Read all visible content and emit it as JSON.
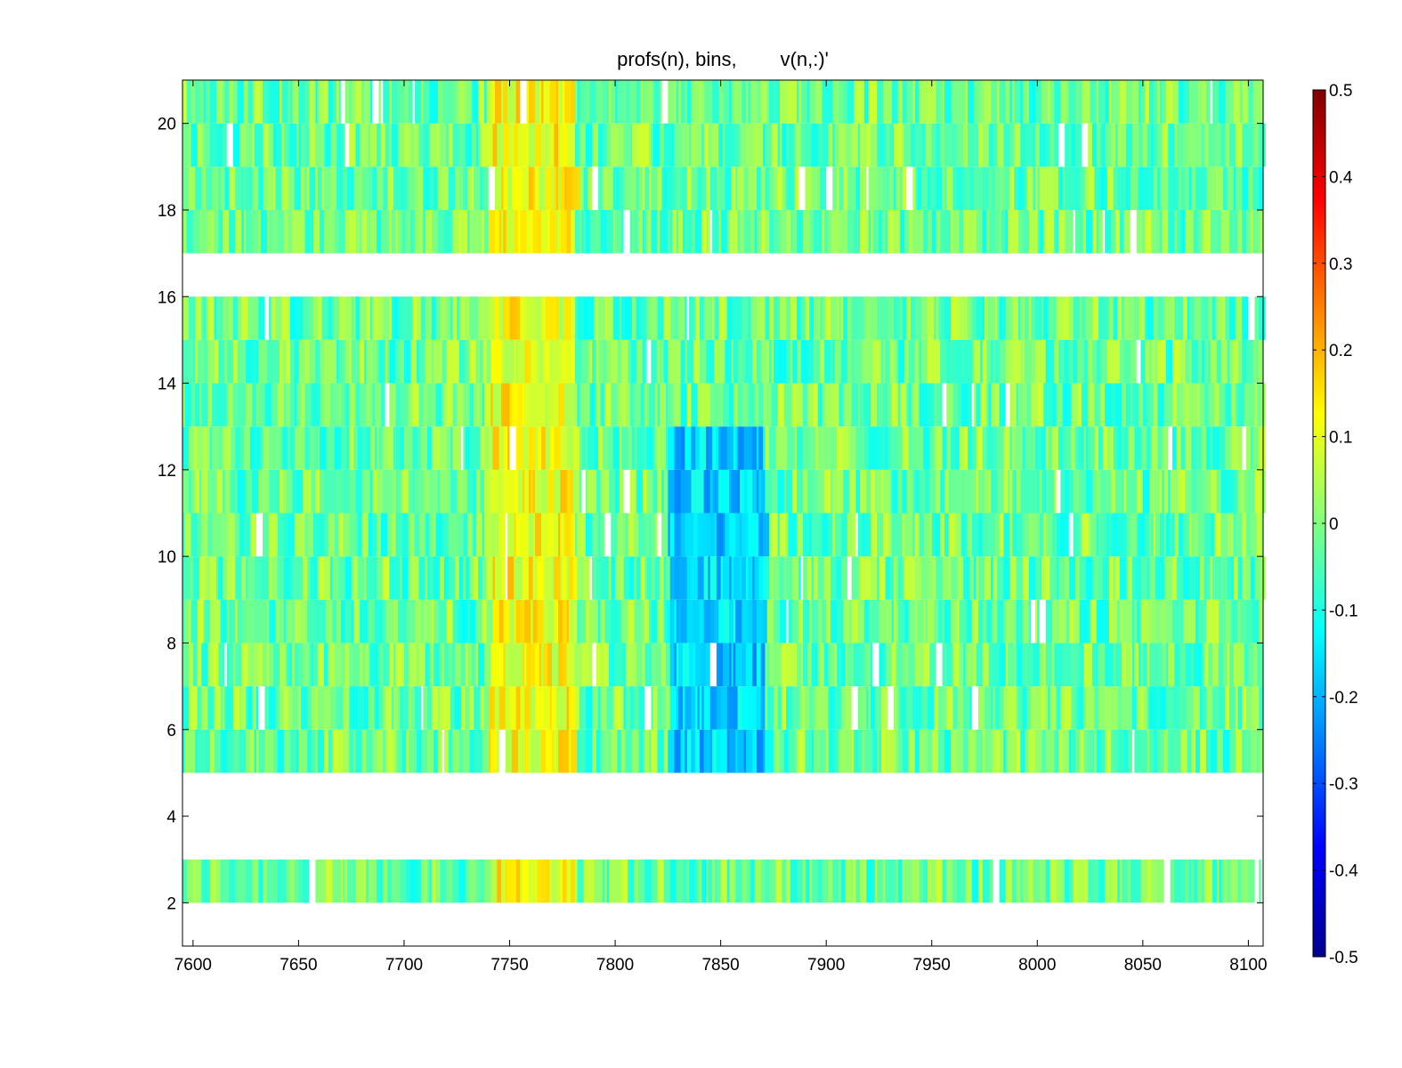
{
  "chart_data": {
    "type": "heatmap",
    "title": "profs(n), bins,        v(n,:)'",
    "xlabel": "",
    "ylabel": "",
    "xlim": [
      7595,
      8107
    ],
    "ylim": [
      1,
      21
    ],
    "xticks": [
      7600,
      7650,
      7700,
      7750,
      7800,
      7850,
      7900,
      7950,
      8000,
      8050,
      8100
    ],
    "xtick_labels": [
      "7600",
      "7650",
      "7700",
      "7750",
      "7800",
      "7850",
      "7900",
      "7950",
      "8000",
      "8050",
      "8100"
    ],
    "yticks": [
      2,
      4,
      6,
      8,
      10,
      12,
      14,
      16,
      18,
      20
    ],
    "ytick_labels": [
      "2",
      "4",
      "6",
      "8",
      "10",
      "12",
      "14",
      "16",
      "18",
      "20"
    ],
    "grid": false,
    "colormap": "jet",
    "clim": [
      -0.5,
      0.5
    ],
    "colorbar": {
      "ticks": [
        0.5,
        0.4,
        0.3,
        0.2,
        0.1,
        0,
        -0.1,
        -0.2,
        -0.3,
        -0.4,
        -0.5
      ],
      "tick_labels": [
        "0.5",
        "0.4",
        "0.3",
        "0.2",
        "0.1",
        "0",
        "-0.1",
        "-0.2",
        "-0.3",
        "-0.4",
        "-0.5"
      ],
      "position": "right"
    },
    "rows_with_data": [
      2,
      5,
      6,
      7,
      8,
      9,
      10,
      11,
      12,
      13,
      14,
      15,
      17,
      18,
      19,
      20
    ],
    "empty_rows": [
      1,
      3,
      4,
      16
    ],
    "column_step": 1,
    "approximate_features": [
      {
        "x_range": [
          7740,
          7780
        ],
        "rows": [
          2,
          20
        ],
        "mean_value": 0.12,
        "description_label": "warm band"
      },
      {
        "x_range": [
          7825,
          7870
        ],
        "rows": [
          5,
          12
        ],
        "mean_value": -0.17,
        "description_label": "cool band"
      }
    ],
    "background_mean": -0.02
  }
}
